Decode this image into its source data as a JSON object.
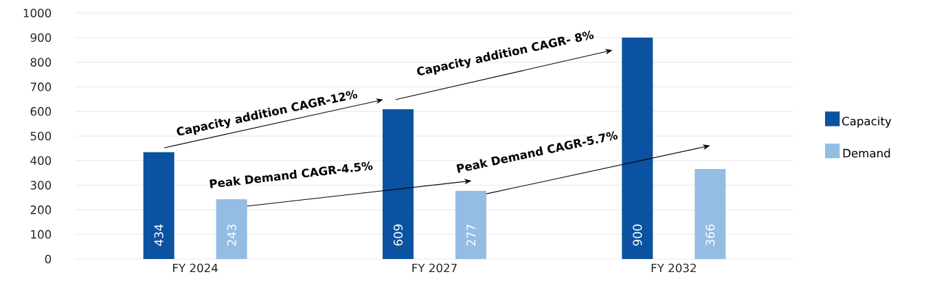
{
  "chart_data": {
    "type": "bar",
    "categories": [
      "FY 2024",
      "FY 2027",
      "FY 2032"
    ],
    "series": [
      {
        "name": "Capacity",
        "color": "#0b52a0",
        "values": [
          434,
          609,
          900
        ]
      },
      {
        "name": "Demand",
        "color": "#94bde3",
        "values": [
          243,
          277,
          366
        ]
      }
    ],
    "ylim": [
      0,
      1000
    ],
    "yticks": [
      0,
      100,
      200,
      300,
      400,
      500,
      600,
      700,
      800,
      900,
      1000
    ],
    "grid": "y",
    "legend": "right",
    "data_labels": true,
    "annotations": [
      "Capacity addition CAGR-12%",
      "Capacity addition  CAGR- 8%",
      "Peak Demand CAGR-4.5%",
      "Peak Demand CAGR-5.7%"
    ]
  }
}
